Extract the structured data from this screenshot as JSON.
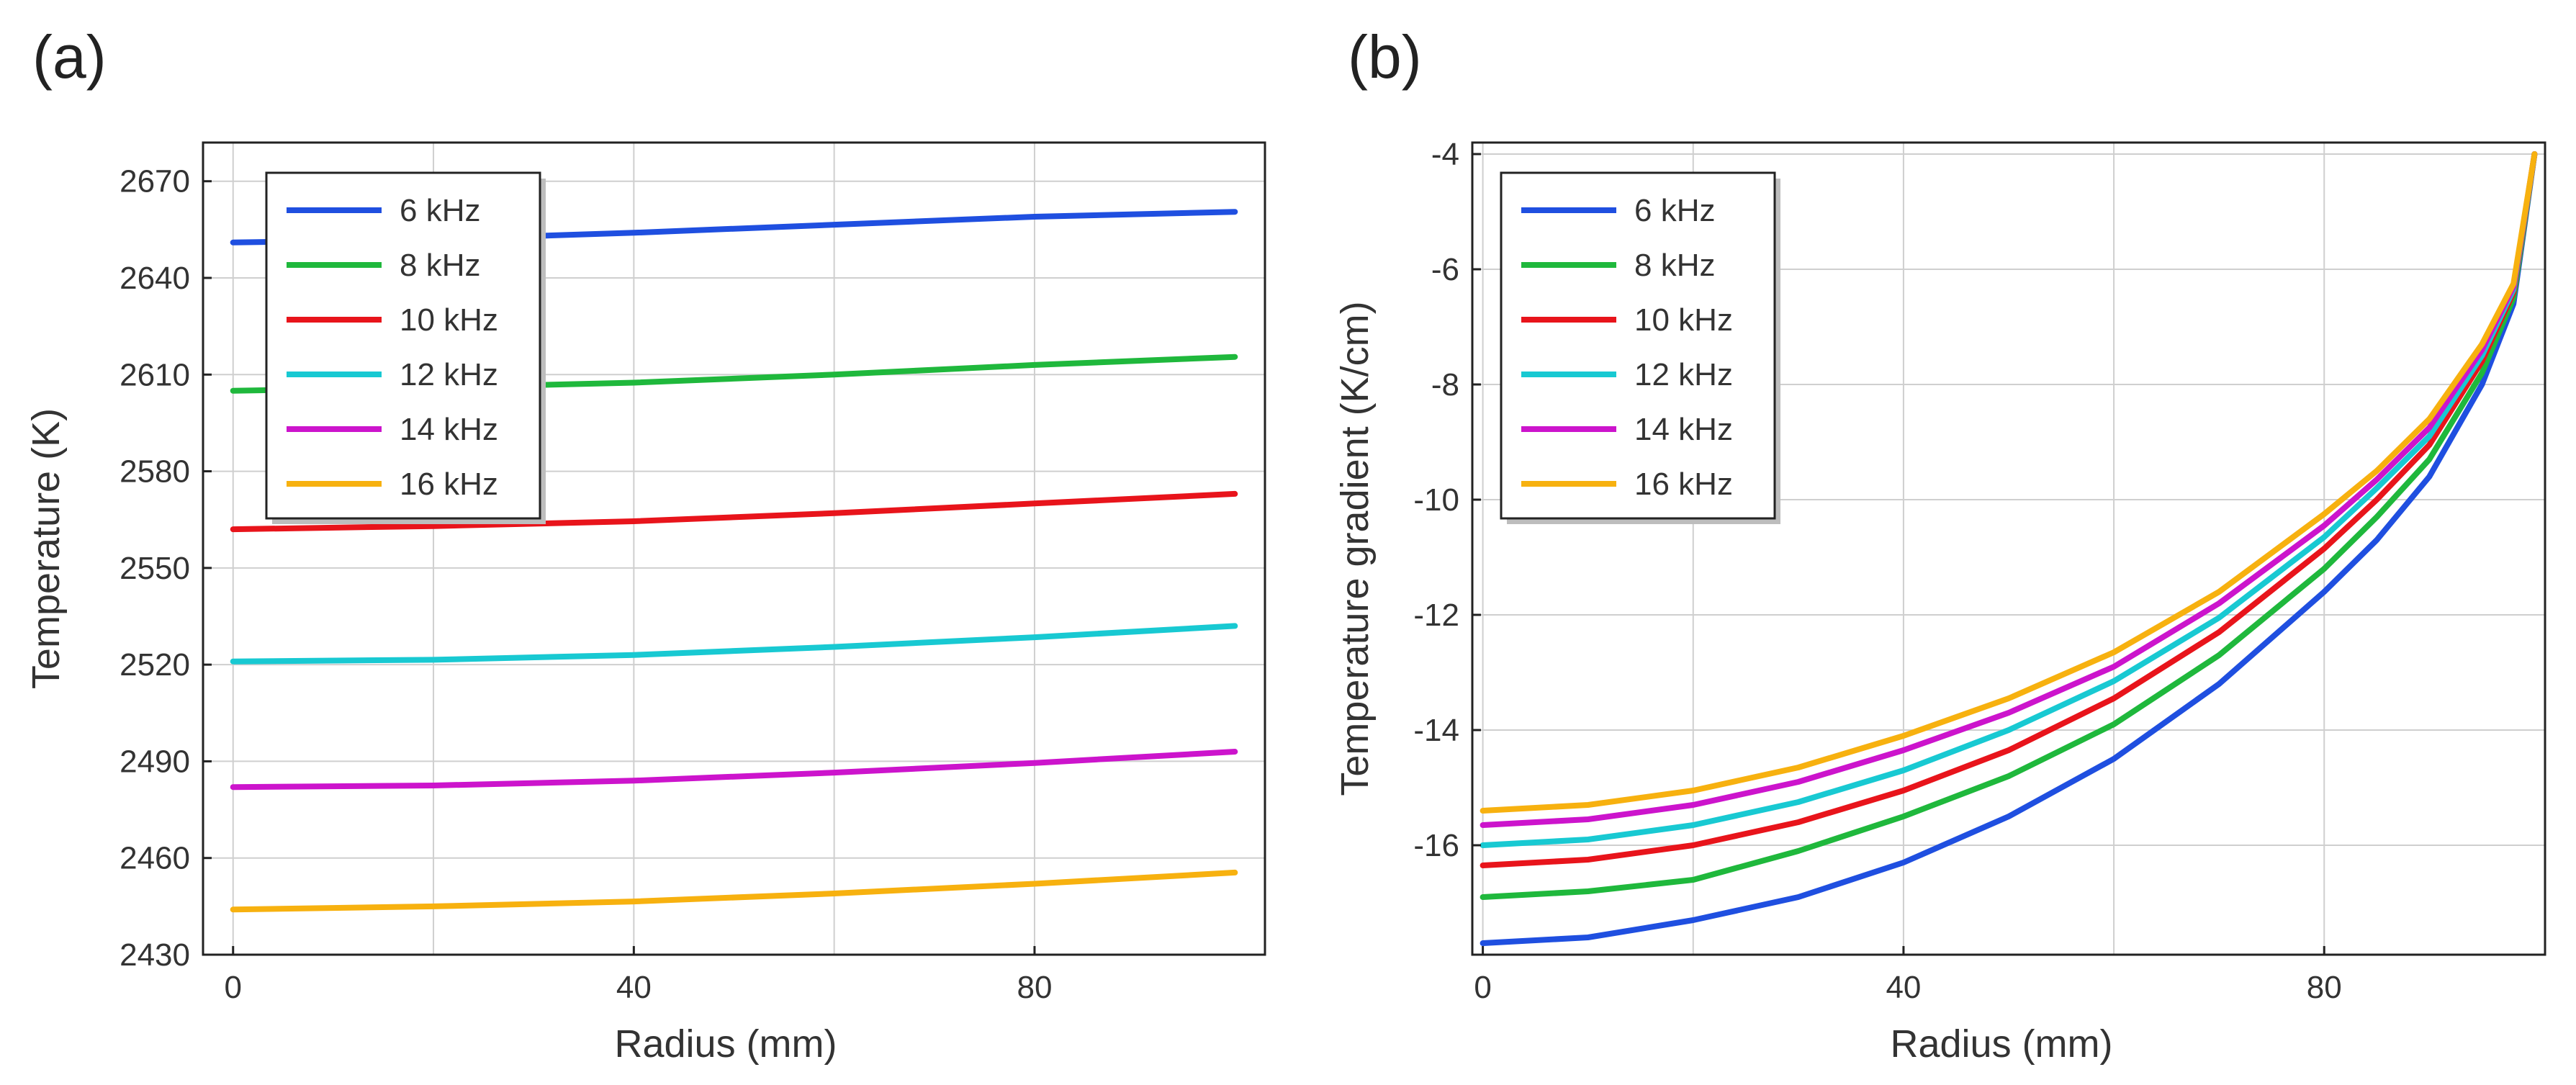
{
  "chart_data": [
    {
      "id": "a",
      "panel_label": "(a)",
      "type": "line",
      "title": "",
      "xlabel": "Radius (mm)",
      "ylabel": "Temperature (K)",
      "xlim": [
        -3,
        103
      ],
      "ylim": [
        2430,
        2682
      ],
      "xticks": [
        0,
        40,
        80
      ],
      "yticks": [
        2430,
        2460,
        2490,
        2520,
        2550,
        2580,
        2610,
        2640,
        2670
      ],
      "grid": true,
      "legend": "top-left",
      "x": [
        0,
        20,
        40,
        60,
        80,
        100
      ],
      "series": [
        {
          "name": "6 kHz",
          "color": "#1f4fe0",
          "values": [
            2651,
            2652,
            2654,
            2656.5,
            2659,
            2660.5
          ]
        },
        {
          "name": "8 kHz",
          "color": "#1fb83c",
          "values": [
            2605,
            2606,
            2607.5,
            2610,
            2613,
            2615.5
          ]
        },
        {
          "name": "10 kHz",
          "color": "#e8141b",
          "values": [
            2562,
            2563,
            2564.5,
            2567,
            2570,
            2573
          ]
        },
        {
          "name": "12 kHz",
          "color": "#18c9d2",
          "values": [
            2521,
            2521.5,
            2523,
            2525.5,
            2528.5,
            2532
          ]
        },
        {
          "name": "14 kHz",
          "color": "#cc14cc",
          "values": [
            2482,
            2482.5,
            2484,
            2486.5,
            2489.5,
            2493
          ]
        },
        {
          "name": "16 kHz",
          "color": "#f7b10f",
          "values": [
            2444,
            2445,
            2446.5,
            2449,
            2452,
            2455.5
          ]
        }
      ]
    },
    {
      "id": "b",
      "panel_label": "(b)",
      "type": "line",
      "title": "",
      "xlabel": "Radius (mm)",
      "ylabel": "Temperature gradient (K/cm)",
      "xlim": [
        -1,
        101
      ],
      "ylim": [
        -17.9,
        -3.8
      ],
      "xticks": [
        0,
        40,
        80
      ],
      "yticks": [
        -16,
        -14,
        -12,
        -10,
        -8,
        -6,
        -4
      ],
      "grid": true,
      "legend": "top-left",
      "x": [
        0,
        10,
        20,
        30,
        40,
        50,
        60,
        70,
        80,
        85,
        90,
        95,
        98,
        100
      ],
      "series": [
        {
          "name": "6 kHz",
          "color": "#1f4fe0",
          "values": [
            -17.7,
            -17.6,
            -17.3,
            -16.9,
            -16.3,
            -15.5,
            -14.5,
            -13.2,
            -11.6,
            -10.7,
            -9.6,
            -8.0,
            -6.6,
            -4.0
          ]
        },
        {
          "name": "8 kHz",
          "color": "#1fb83c",
          "values": [
            -16.9,
            -16.8,
            -16.6,
            -16.1,
            -15.5,
            -14.8,
            -13.9,
            -12.7,
            -11.2,
            -10.3,
            -9.3,
            -7.8,
            -6.5,
            -4.0
          ]
        },
        {
          "name": "10 kHz",
          "color": "#e8141b",
          "values": [
            -16.35,
            -16.25,
            -16.0,
            -15.6,
            -15.05,
            -14.35,
            -13.45,
            -12.3,
            -10.85,
            -10.0,
            -9.05,
            -7.6,
            -6.4,
            -4.0
          ]
        },
        {
          "name": "12 kHz",
          "color": "#18c9d2",
          "values": [
            -16.0,
            -15.9,
            -15.65,
            -15.25,
            -14.7,
            -14.0,
            -13.15,
            -12.05,
            -10.65,
            -9.8,
            -8.9,
            -7.5,
            -6.35,
            -4.0
          ]
        },
        {
          "name": "14 kHz",
          "color": "#cc14cc",
          "values": [
            -15.65,
            -15.55,
            -15.3,
            -14.9,
            -14.35,
            -13.7,
            -12.9,
            -11.8,
            -10.45,
            -9.65,
            -8.75,
            -7.4,
            -6.3,
            -4.0
          ]
        },
        {
          "name": "16 kHz",
          "color": "#f7b10f",
          "values": [
            -15.4,
            -15.3,
            -15.05,
            -14.65,
            -14.1,
            -13.45,
            -12.65,
            -11.6,
            -10.25,
            -9.5,
            -8.6,
            -7.3,
            -6.25,
            -4.0
          ]
        }
      ]
    }
  ]
}
